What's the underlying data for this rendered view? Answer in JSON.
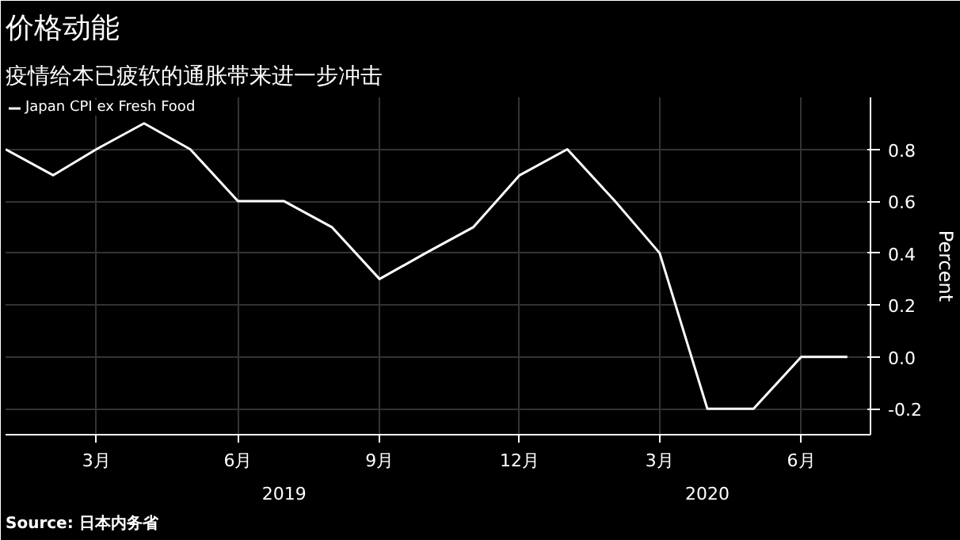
{
  "chart_data": {
    "type": "line",
    "title": "价格动能",
    "subtitle": "疫情给本已疲软的通胀带来进一步冲击",
    "ylabel": "Percent",
    "x": [
      "2019-01",
      "2019-02",
      "2019-03",
      "2019-04",
      "2019-05",
      "2019-06",
      "2019-07",
      "2019-08",
      "2019-09",
      "2019-10",
      "2019-11",
      "2019-12",
      "2020-01",
      "2020-02",
      "2020-03",
      "2020-04",
      "2020-05",
      "2020-06",
      "2020-07"
    ],
    "series": [
      {
        "name": "Japan CPI ex Fresh Food",
        "color": "#ffffff",
        "values": [
          0.8,
          0.7,
          0.8,
          0.9,
          0.8,
          0.6,
          0.6,
          0.5,
          0.3,
          0.4,
          0.5,
          0.7,
          0.8,
          0.6,
          0.4,
          -0.2,
          -0.2,
          0.0,
          0.0
        ]
      }
    ],
    "xlim": [
      "2019-01-01",
      "2020-07-16"
    ],
    "xticks": [
      {
        "value": "2019-03",
        "label": "3月"
      },
      {
        "value": "2019-06",
        "label": "6月"
      },
      {
        "value": "2019-09",
        "label": "9月"
      },
      {
        "value": "2019-12",
        "label": "12月"
      },
      {
        "value": "2020-03",
        "label": "3月"
      },
      {
        "value": "2020-06",
        "label": "6月"
      }
    ],
    "x2lim": [
      "2019-01-01",
      "2020-07-16"
    ],
    "x2ticks": [
      {
        "value": "2019-07",
        "label": "2019"
      },
      {
        "value": "2020-04",
        "label": "2020"
      }
    ],
    "ylim": [
      -0.3,
      1.0
    ],
    "yticks": [
      -0.2,
      {
        "value": 0,
        "label": "0.0"
      },
      0.2,
      0.4,
      0.6,
      0.8
    ],
    "grid": true,
    "legend": "top left",
    "line_style": "solid",
    "marker": "none",
    "annotations": [
      "Source: 日本内务省"
    ]
  }
}
